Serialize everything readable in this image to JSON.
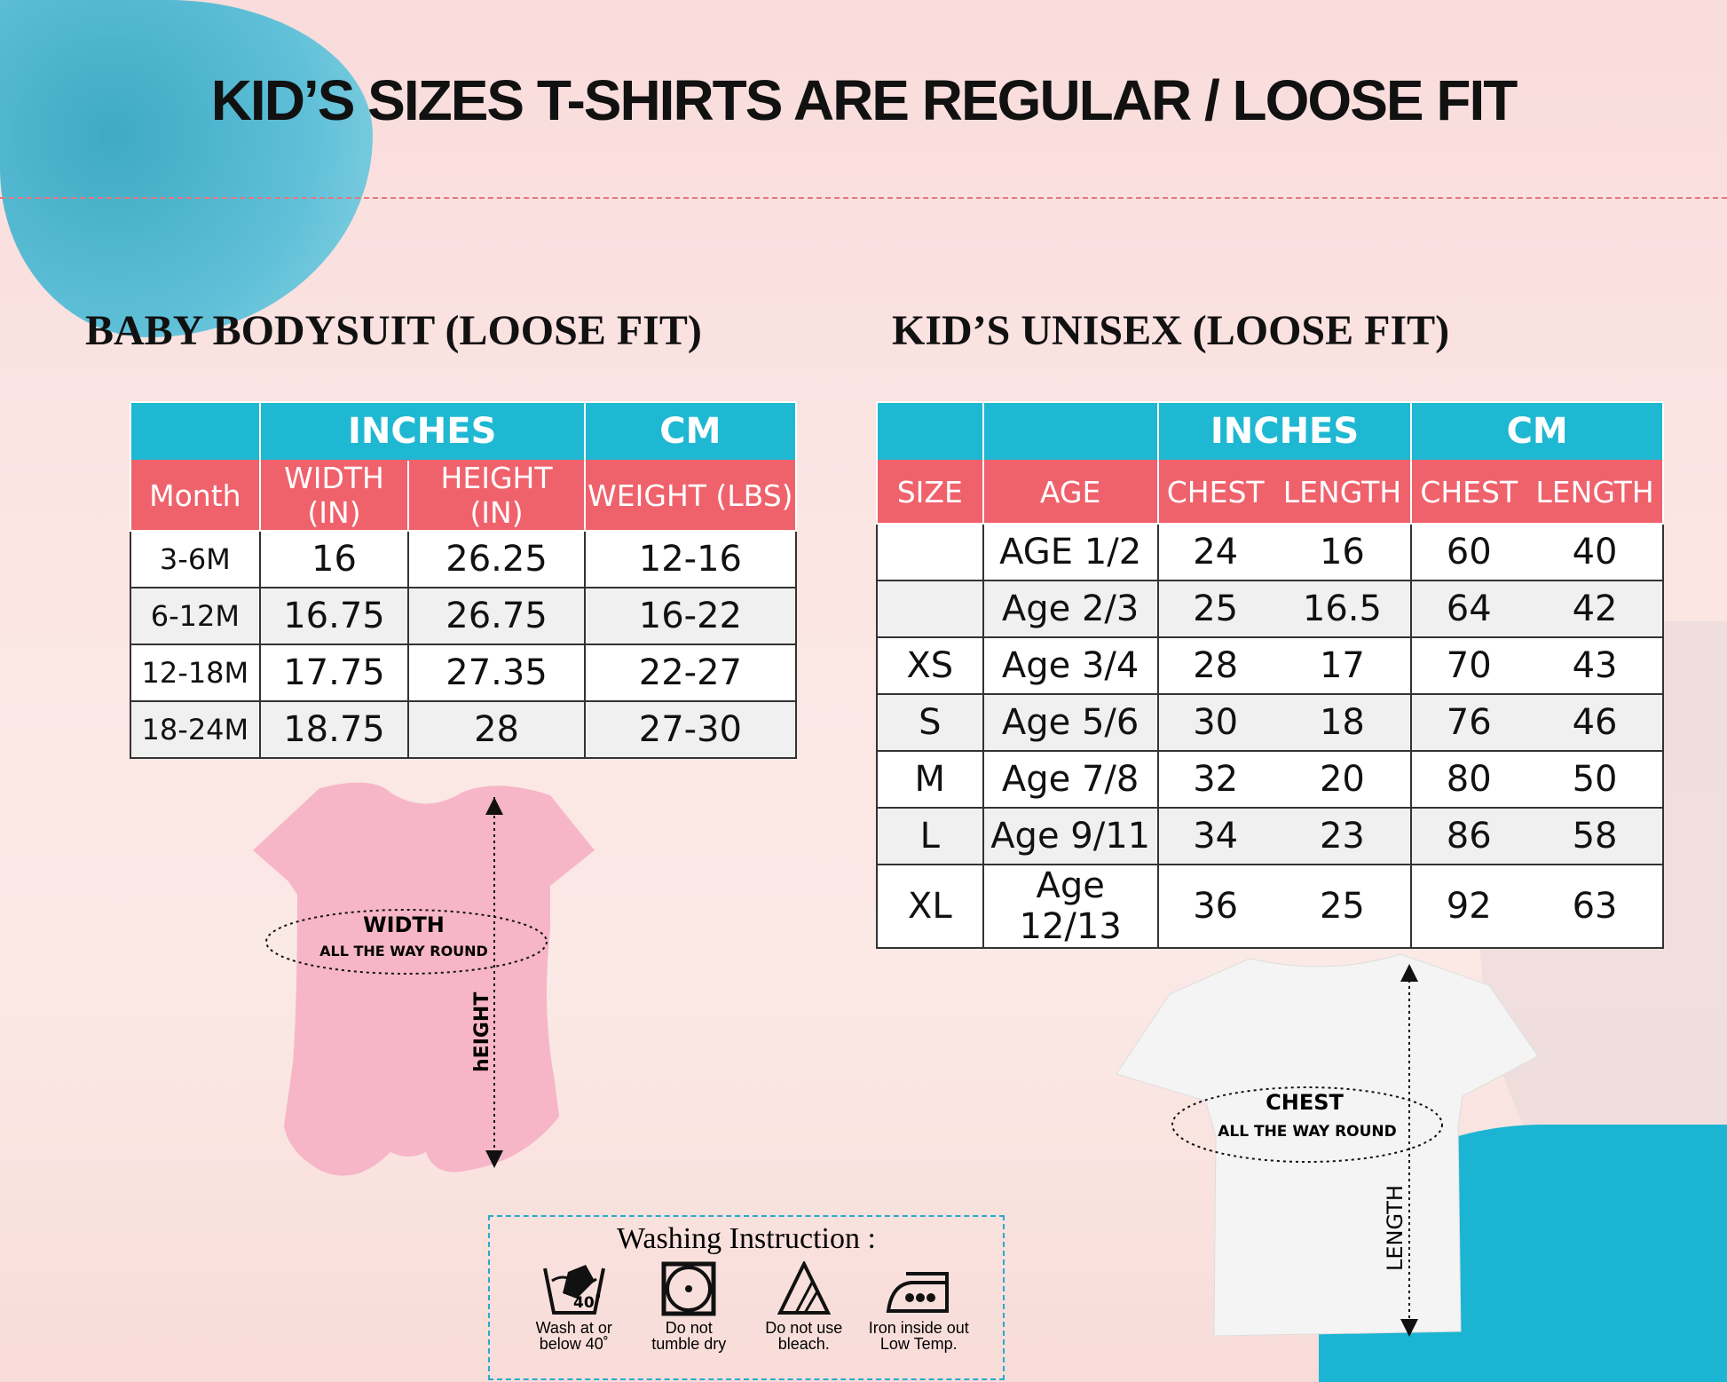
{
  "title": "KID’S SIZES T-SHIRTS ARE REGULAR / LOOSE FIT",
  "colors": {
    "teal": "#1fb8d3",
    "pink": "#ef626c"
  },
  "baby": {
    "heading": "BABY BODYSUIT (LOOSE FIT)",
    "group_headers": [
      "INCHES",
      "CM"
    ],
    "columns": [
      "Month",
      "WIDTH (IN)",
      "HEIGHT (IN)",
      "WEIGHT (LBS)"
    ],
    "rows": [
      [
        "3-6M",
        "16",
        "26.25",
        "12-16"
      ],
      [
        "6-12M",
        "16.75",
        "26.75",
        "16-22"
      ],
      [
        "12-18M",
        "17.75",
        "27.35",
        "22-27"
      ],
      [
        "18-24M",
        "18.75",
        "28",
        "27-30"
      ]
    ],
    "diagram": {
      "width_label": "WIDTH",
      "width_sub": "ALL THE WAY ROUND",
      "height_label": "hEIGHT"
    }
  },
  "kids": {
    "heading": "KID’S UNISEX (LOOSE FIT)",
    "group_headers": [
      "INCHES",
      "CM"
    ],
    "columns": [
      "SIZE",
      "AGE",
      "CHEST",
      "LENGTH",
      "CHEST",
      "LENGTH"
    ],
    "rows": [
      [
        "",
        "AGE 1/2",
        "24",
        "16",
        "60",
        "40"
      ],
      [
        "",
        "Age 2/3",
        "25",
        "16.5",
        "64",
        "42"
      ],
      [
        "XS",
        "Age 3/4",
        "28",
        "17",
        "70",
        "43"
      ],
      [
        "S",
        "Age 5/6",
        "30",
        "18",
        "76",
        "46"
      ],
      [
        "M",
        "Age 7/8",
        "32",
        "20",
        "80",
        "50"
      ],
      [
        "L",
        "Age 9/11",
        "34",
        "23",
        "86",
        "58"
      ],
      [
        "XL",
        "Age 12/13",
        "36",
        "25",
        "92",
        "63"
      ]
    ],
    "diagram": {
      "chest_label": "CHEST",
      "chest_sub": "ALL THE WAY ROUND",
      "length_label": "LENGTH"
    }
  },
  "washing": {
    "title": "Washing Instruction :",
    "items": [
      {
        "icon": "wash-40-icon",
        "line1": "Wash at or",
        "line2": "below 40˚",
        "temp": "40˚"
      },
      {
        "icon": "no-tumble-dry-icon",
        "line1": "Do  not",
        "line2": "tumble dry"
      },
      {
        "icon": "no-bleach-icon",
        "line1": "Do not use",
        "line2": "bleach."
      },
      {
        "icon": "iron-low-icon",
        "line1": "Iron inside out",
        "line2": "Low Temp."
      }
    ]
  }
}
